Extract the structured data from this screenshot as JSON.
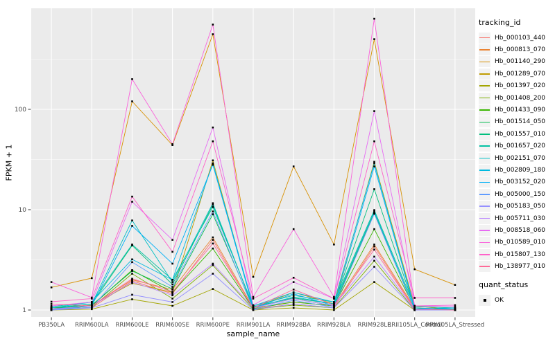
{
  "figure": {
    "background": "#FFFFFF",
    "panel_bg": "#EBEBEB",
    "grid_color": "#FFFFFF",
    "tick_color": "#333333",
    "tick_label_color": "#4D4D4D",
    "point_color": "#000000",
    "legend_key_bg": "#F2F2F2"
  },
  "axes": {
    "x_title": "sample_name",
    "y_title": "FPKM + 1",
    "y_ticks": [
      {
        "label": "1",
        "value": 1
      },
      {
        "label": "10",
        "value": 10
      },
      {
        "label": "100",
        "value": 100
      }
    ],
    "y_minor_values": [
      3.1623,
      31.623,
      316.23
    ]
  },
  "legend": {
    "tracking_title": "tracking_id",
    "quant_title": "quant_status",
    "quant_items": [
      {
        "label": "OK"
      }
    ]
  },
  "chart_data": {
    "type": "line",
    "title": "",
    "xlabel": "sample_name",
    "ylabel": "FPKM + 1",
    "y_scale": "log10",
    "ylim": [
      1,
      1000
    ],
    "grid": true,
    "legend_position": "right",
    "categories": [
      "PB350LA",
      "RRIM600LA",
      "RRIM600LE",
      "RRIM600SE",
      "RRIM600PE",
      "RRIM901LA",
      "RRIM928BA",
      "RRIM928LA",
      "RRIM928LE",
      "RRII105LA_Control",
      "RRII105LA_Stressed"
    ],
    "series": [
      {
        "name": "Hb_000103_440",
        "color": "#F8766D",
        "quant_status": "OK",
        "values": [
          1.05,
          1.05,
          1.95,
          1.45,
          5.0,
          1.02,
          1.15,
          1.05,
          4.3,
          1.02,
          1.0
        ]
      },
      {
        "name": "Hb_000813_070",
        "color": "#EA8331",
        "quant_status": "OK",
        "values": [
          1.0,
          1.1,
          2.0,
          1.6,
          5.3,
          1.05,
          1.2,
          1.1,
          4.5,
          1.05,
          1.02
        ]
      },
      {
        "name": "Hb_001140_290",
        "color": "#D89000",
        "quant_status": "OK",
        "values": [
          1.68,
          2.08,
          120,
          44,
          560,
          2.14,
          27,
          4.5,
          500,
          2.55,
          1.78
        ]
      },
      {
        "name": "Hb_001289_070",
        "color": "#C09B00",
        "quant_status": "OK",
        "values": [
          1.02,
          1.12,
          1.85,
          1.5,
          31,
          1.05,
          1.5,
          1.15,
          30,
          1.1,
          1.0
        ]
      },
      {
        "name": "Hb_001397_020",
        "color": "#A3A500",
        "quant_status": "OK",
        "values": [
          1.0,
          1.02,
          1.28,
          1.1,
          1.62,
          1.0,
          1.05,
          1.0,
          1.9,
          1.0,
          1.0
        ]
      },
      {
        "name": "Hb_001408_200",
        "color": "#7CAE00",
        "quant_status": "OK",
        "values": [
          1.02,
          1.06,
          2.3,
          1.3,
          2.8,
          1.02,
          1.12,
          1.05,
          3.1,
          1.0,
          1.02
        ]
      },
      {
        "name": "Hb_001433_090",
        "color": "#39B600",
        "quant_status": "OK",
        "values": [
          1.05,
          1.1,
          2.5,
          1.5,
          4.1,
          1.03,
          1.2,
          1.1,
          6.4,
          1.05,
          1.0
        ]
      },
      {
        "name": "Hb_001514_050",
        "color": "#00BB4E",
        "quant_status": "OK",
        "values": [
          1.0,
          1.12,
          2.45,
          1.62,
          9.0,
          1.05,
          1.3,
          1.1,
          9.3,
          1.02,
          1.05
        ]
      },
      {
        "name": "Hb_001557_010",
        "color": "#00BF7D",
        "quant_status": "OK",
        "values": [
          1.05,
          1.15,
          4.4,
          1.8,
          11.2,
          1.08,
          1.32,
          1.15,
          16,
          1.05,
          1.0
        ]
      },
      {
        "name": "Hb_001657_020",
        "color": "#00C1A3",
        "quant_status": "OK",
        "values": [
          1.08,
          1.2,
          4.5,
          2.0,
          10.6,
          1.1,
          1.4,
          1.2,
          9.9,
          1.08,
          1.05
        ]
      },
      {
        "name": "Hb_002151_070",
        "color": "#00BFC4",
        "quant_status": "OK",
        "values": [
          1.02,
          1.15,
          7.8,
          1.9,
          11.6,
          1.05,
          1.35,
          1.15,
          9.6,
          1.02,
          1.0
        ]
      },
      {
        "name": "Hb_002809_180",
        "color": "#00BAE0",
        "quant_status": "OK",
        "values": [
          1.05,
          1.2,
          3.2,
          2.0,
          29,
          1.1,
          1.5,
          1.2,
          29,
          1.05,
          1.02
        ]
      },
      {
        "name": "Hb_003152_020",
        "color": "#00B0F6",
        "quant_status": "OK",
        "values": [
          1.0,
          1.1,
          6.9,
          2.9,
          28,
          1.05,
          1.45,
          1.1,
          27,
          1.02,
          1.05
        ]
      },
      {
        "name": "Hb_005000_150",
        "color": "#619CFF",
        "quant_status": "OK",
        "values": [
          1.02,
          1.06,
          3.0,
          1.7,
          9.6,
          1.02,
          1.25,
          1.06,
          9.1,
          1.0,
          1.0
        ]
      },
      {
        "name": "Hb_005183_050",
        "color": "#9590FF",
        "quant_status": "OK",
        "values": [
          1.0,
          1.05,
          1.42,
          1.2,
          2.3,
          1.0,
          1.15,
          1.05,
          2.7,
          1.0,
          1.0
        ]
      },
      {
        "name": "Hb_005711_030",
        "color": "#B983FF",
        "quant_status": "OK",
        "values": [
          1.02,
          1.1,
          1.9,
          1.4,
          2.9,
          1.05,
          1.3,
          1.1,
          3.4,
          1.02,
          1.0
        ]
      },
      {
        "name": "Hb_008518_060",
        "color": "#E76BF3",
        "quant_status": "OK",
        "values": [
          1.1,
          1.2,
          12,
          5.0,
          66,
          1.12,
          1.9,
          1.3,
          96,
          1.1,
          1.08
        ]
      },
      {
        "name": "Hb_010589_010",
        "color": "#FA62DB",
        "quant_status": "OK",
        "values": [
          1.9,
          1.33,
          200,
          45,
          700,
          1.35,
          6.4,
          1.35,
          800,
          1.1,
          1.12
        ]
      },
      {
        "name": "Hb_015807_130",
        "color": "#FF61C9",
        "quant_status": "OK",
        "values": [
          1.21,
          1.3,
          13.5,
          3.8,
          48,
          1.3,
          2.1,
          1.3,
          48,
          1.32,
          1.32
        ]
      },
      {
        "name": "Hb_138977_010",
        "color": "#FF6A98",
        "quant_status": "OK",
        "values": [
          1.15,
          1.1,
          2.05,
          1.52,
          4.6,
          1.05,
          1.6,
          1.12,
          4.0,
          1.02,
          1.0
        ]
      }
    ]
  }
}
